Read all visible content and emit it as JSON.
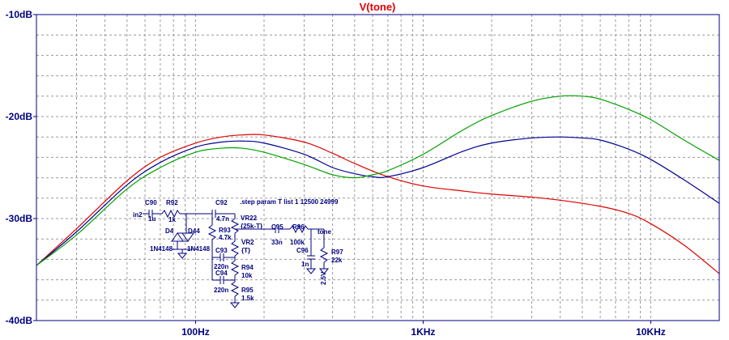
{
  "chart_data": {
    "type": "line",
    "title": "V(tone)",
    "xscale": "log",
    "xlim": [
      20,
      20000
    ],
    "ylim": [
      -40,
      -10
    ],
    "grid": true,
    "xticks": [
      {
        "value": 100,
        "label": "100Hz"
      },
      {
        "value": 1000,
        "label": "1KHz"
      },
      {
        "value": 10000,
        "label": "10KHz"
      }
    ],
    "yticks": [
      {
        "value": -10,
        "label": "-10dB"
      },
      {
        "value": -20,
        "label": "-20dB"
      },
      {
        "value": -30,
        "label": "-30dB"
      },
      {
        "value": -40,
        "label": "-40dB"
      }
    ],
    "colors": {
      "axis": "#000080",
      "grid": "#999999",
      "title": "#e00000",
      "schematic": "#000080",
      "red": "#e00000",
      "blue": "#000090",
      "green": "#00a000"
    },
    "series": [
      {
        "color": "#e00000",
        "x": [
          20,
          30,
          50,
          70,
          100,
          130,
          160,
          200,
          300,
          400,
          500,
          700,
          1000,
          1500,
          2000,
          3000,
          4000,
          6000,
          8000,
          10000,
          14000,
          20000
        ],
        "y": [
          -34.6,
          -31,
          -26.3,
          -24,
          -22.6,
          -22,
          -21.8,
          -21.8,
          -22.5,
          -23.6,
          -24.6,
          -25.9,
          -26.8,
          -27.3,
          -27.6,
          -27.9,
          -28.2,
          -28.8,
          -29.5,
          -30.5,
          -32.6,
          -35.4
        ]
      },
      {
        "color": "#000090",
        "x": [
          20,
          30,
          50,
          70,
          100,
          130,
          160,
          200,
          300,
          400,
          500,
          600,
          700,
          1000,
          1500,
          2000,
          3000,
          4000,
          5000,
          6000,
          8000,
          10000,
          14000,
          20000
        ],
        "y": [
          -34.6,
          -31.3,
          -26.7,
          -24.5,
          -23,
          -22.5,
          -22.4,
          -22.6,
          -23.7,
          -25,
          -25.6,
          -25.9,
          -25.9,
          -25,
          -23.4,
          -22.6,
          -22.1,
          -22,
          -22.1,
          -22.3,
          -23.2,
          -24.2,
          -26.2,
          -28.5
        ]
      },
      {
        "color": "#00a000",
        "x": [
          20,
          30,
          50,
          70,
          100,
          130,
          160,
          200,
          300,
          400,
          500,
          600,
          700,
          1000,
          1500,
          2000,
          3000,
          4000,
          5000,
          6000,
          8000,
          10000,
          14000,
          20000
        ],
        "y": [
          -34.6,
          -31.6,
          -27.1,
          -25,
          -23.5,
          -23.1,
          -23.1,
          -23.5,
          -24.7,
          -25.7,
          -26,
          -25.7,
          -25.3,
          -23.7,
          -21.3,
          -19.9,
          -18.5,
          -18,
          -18,
          -18.3,
          -19.3,
          -20.3,
          -22.3,
          -24.3
        ]
      }
    ]
  },
  "schematic": {
    "directive": ".step param T list 1 12500 24999",
    "labels": {
      "in": "in2",
      "c90": "C90",
      "c90v": "1u",
      "r92": "R92",
      "r92v": "1k",
      "c92": "C92",
      "c92v": "4.7n",
      "vr22": "VR22",
      "vr22v": "{25k-T}",
      "d4": "D4",
      "d44": "D44",
      "d4m": "1N4148",
      "d44m": "1N4148",
      "r93": "R93",
      "r93v": "4.7k",
      "vr2": "VR2",
      "vr2v": "{T}",
      "c93": "C93",
      "c93v": "220n",
      "r94": "R94",
      "r94v": "10k",
      "c94": "C94",
      "c94v": "220n",
      "r95": "R95",
      "r95v": "1.5k",
      "c95": "C95",
      "c95v": "33n",
      "r96": "R96",
      "r96v": "100k",
      "tone": "tone",
      "c96": "C96",
      "c96v": "1n",
      "r97": "R97",
      "r97v": "22k",
      "v96": "2.5V"
    }
  }
}
